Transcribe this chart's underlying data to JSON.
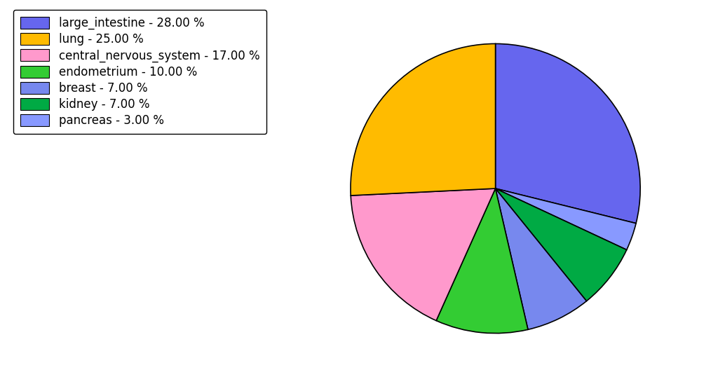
{
  "labels": [
    "large_intestine",
    "pancreas",
    "kidney",
    "breast",
    "endometrium",
    "central_nervous_system",
    "lung"
  ],
  "values": [
    28,
    3,
    7,
    7,
    10,
    17,
    25
  ],
  "colors": [
    "#6666ee",
    "#8899ff",
    "#00aa44",
    "#7788ee",
    "#33cc33",
    "#ff99cc",
    "#ffbb00"
  ],
  "legend_labels": [
    "large_intestine - 28.00 %",
    "lung - 25.00 %",
    "central_nervous_system - 17.00 %",
    "endometrium - 10.00 %",
    "breast - 7.00 %",
    "kidney - 7.00 %",
    "pancreas - 3.00 %"
  ],
  "legend_colors": [
    "#6666ee",
    "#ffbb00",
    "#ff99cc",
    "#33cc33",
    "#7788ee",
    "#00aa44",
    "#8899ff"
  ],
  "startangle": 90,
  "counterclock": false,
  "background_color": "#ffffff"
}
